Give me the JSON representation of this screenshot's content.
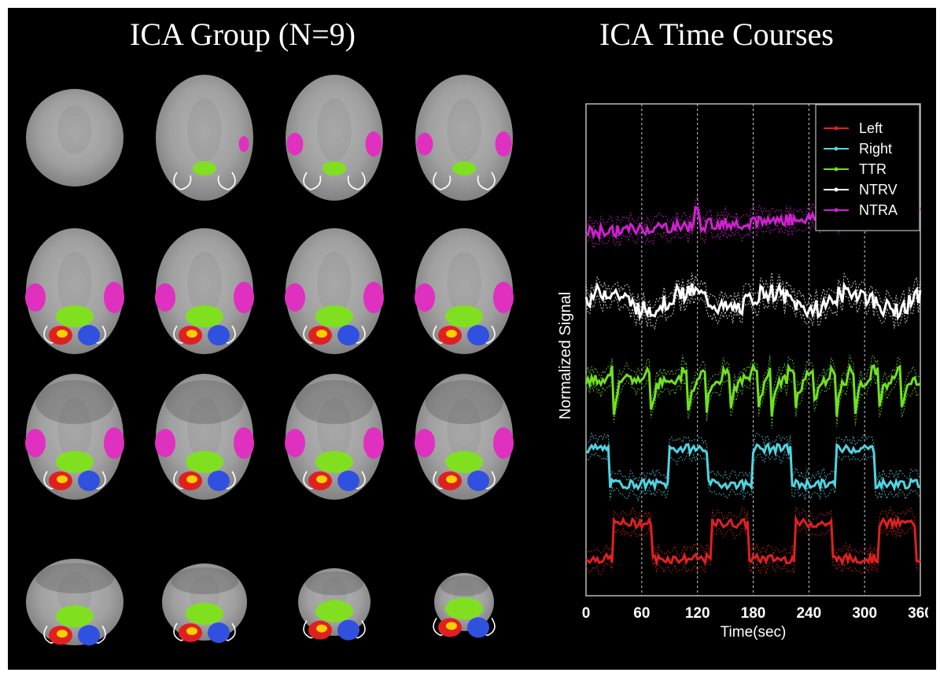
{
  "figure": {
    "left_title": "ICA Group (N=9)",
    "right_title": "ICA Time Courses"
  },
  "brain_slices": {
    "rows": 4,
    "cols": 4,
    "component_colors": {
      "left": "#e02020",
      "right": "#3050e0",
      "ttr": "#80e020",
      "ntrv": "#ffffff",
      "ntra": "#e030c0"
    }
  },
  "chart_data": {
    "type": "line",
    "xlabel": "Time(sec)",
    "ylabel": "Normalized Signal",
    "xlim": [
      0,
      360
    ],
    "xticks": [
      "0",
      "60",
      "120",
      "180",
      "240",
      "300",
      "360"
    ],
    "vertical_gridlines_at": [
      60,
      120,
      180,
      240,
      300
    ],
    "legend_position": "top-right",
    "series": [
      {
        "name": "Left",
        "color": "#e02020",
        "offset": 0.0,
        "pattern": "block",
        "on_blocks": [
          [
            30,
            60
          ],
          [
            135,
            165
          ],
          [
            225,
            255
          ],
          [
            315,
            345
          ]
        ]
      },
      {
        "name": "Right",
        "color": "#4fd4e0",
        "offset": 1.0,
        "pattern": "block",
        "on_blocks": [
          [
            0,
            15
          ],
          [
            90,
            120
          ],
          [
            180,
            210
          ],
          [
            270,
            300
          ]
        ]
      },
      {
        "name": "TTR",
        "color": "#70e020",
        "offset": 2.0,
        "pattern": "spikes",
        "spike_times": [
          30,
          70,
          110,
          130,
          155,
          185,
          200,
          225,
          245,
          270,
          290,
          315,
          340
        ]
      },
      {
        "name": "NTRV",
        "color": "#ffffff",
        "offset": 3.0,
        "pattern": "noise"
      },
      {
        "name": "NTRA",
        "color": "#d020d0",
        "offset": 4.0,
        "pattern": "drift"
      }
    ]
  }
}
